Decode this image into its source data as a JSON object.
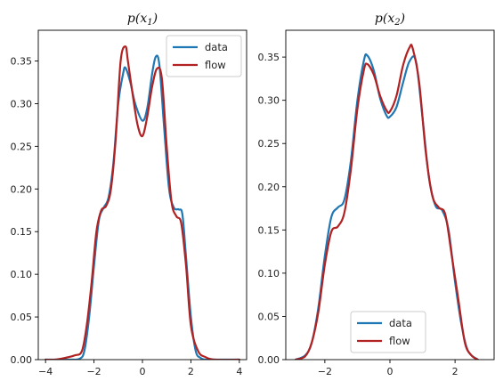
{
  "chart_data": [
    {
      "type": "line",
      "title": {
        "prefix": "p(x",
        "sub": "1",
        "suffix": ")"
      },
      "xlabel": "",
      "ylabel": "",
      "xlim": [
        -4.3,
        4.3
      ],
      "ylim": [
        0,
        0.386
      ],
      "xticks": [
        -4,
        -2,
        0,
        2,
        4
      ],
      "yticks": [
        0.0,
        0.05,
        0.1,
        0.15,
        0.2,
        0.25,
        0.3,
        0.35
      ],
      "legend": {
        "position": "upper right",
        "entries": [
          "data",
          "flow"
        ]
      },
      "series": [
        {
          "name": "data",
          "color": "#1f77b4",
          "x": [
            -4.0,
            -3.0,
            -2.6,
            -2.4,
            -2.2,
            -2.0,
            -1.8,
            -1.6,
            -1.4,
            -1.2,
            -1.0,
            -0.8,
            -0.7,
            -0.5,
            -0.3,
            0.0,
            0.2,
            0.4,
            0.55,
            0.7,
            0.9,
            1.1,
            1.3,
            1.5,
            1.65,
            1.8,
            2.0,
            2.2,
            2.4,
            2.6,
            3.0,
            4.0
          ],
          "y": [
            0.0,
            0.0,
            0.001,
            0.01,
            0.05,
            0.11,
            0.163,
            0.178,
            0.19,
            0.23,
            0.3,
            0.335,
            0.342,
            0.325,
            0.3,
            0.28,
            0.295,
            0.335,
            0.355,
            0.345,
            0.27,
            0.2,
            0.178,
            0.176,
            0.17,
            0.12,
            0.05,
            0.01,
            0.002,
            0.0,
            0.0,
            0.0
          ]
        },
        {
          "name": "flow",
          "color": "#b22222",
          "x": [
            -4.0,
            -3.6,
            -3.2,
            -2.8,
            -2.5,
            -2.3,
            -2.1,
            -1.9,
            -1.7,
            -1.5,
            -1.3,
            -1.1,
            -0.9,
            -0.7,
            -0.6,
            -0.4,
            -0.2,
            0.0,
            0.2,
            0.4,
            0.6,
            0.8,
            1.0,
            1.2,
            1.4,
            1.6,
            1.8,
            2.0,
            2.3,
            2.6,
            3.0,
            4.0
          ],
          "y": [
            0.0,
            0.0,
            0.002,
            0.005,
            0.01,
            0.04,
            0.09,
            0.15,
            0.175,
            0.18,
            0.2,
            0.26,
            0.35,
            0.367,
            0.35,
            0.31,
            0.275,
            0.262,
            0.285,
            0.32,
            0.341,
            0.33,
            0.25,
            0.185,
            0.168,
            0.16,
            0.11,
            0.04,
            0.01,
            0.003,
            0.0,
            0.0
          ]
        }
      ]
    },
    {
      "type": "line",
      "title": {
        "prefix": "p(x",
        "sub": "2",
        "suffix": ")"
      },
      "xlabel": "",
      "ylabel": "",
      "xlim": [
        -3.2,
        3.2
      ],
      "ylim": [
        0,
        0.381
      ],
      "xticks": [
        -2,
        0,
        2
      ],
      "yticks": [
        0.0,
        0.05,
        0.1,
        0.15,
        0.2,
        0.25,
        0.3,
        0.35
      ],
      "legend": {
        "position": "lower center",
        "entries": [
          "data",
          "flow"
        ]
      },
      "series": [
        {
          "name": "data",
          "color": "#1f77b4",
          "x": [
            -2.9,
            -2.6,
            -2.4,
            -2.2,
            -2.0,
            -1.8,
            -1.6,
            -1.4,
            -1.2,
            -1.0,
            -0.8,
            -0.7,
            -0.5,
            -0.3,
            -0.1,
            0.0,
            0.2,
            0.4,
            0.6,
            0.8,
            1.0,
            1.2,
            1.4,
            1.6,
            1.8,
            2.0,
            2.2,
            2.4,
            2.7
          ],
          "y": [
            0.0,
            0.005,
            0.02,
            0.06,
            0.12,
            0.165,
            0.176,
            0.185,
            0.23,
            0.3,
            0.346,
            0.352,
            0.335,
            0.302,
            0.282,
            0.281,
            0.292,
            0.32,
            0.345,
            0.345,
            0.28,
            0.21,
            0.178,
            0.173,
            0.15,
            0.09,
            0.04,
            0.01,
            0.0
          ]
        },
        {
          "name": "flow",
          "color": "#b22222",
          "x": [
            -2.9,
            -2.6,
            -2.4,
            -2.2,
            -2.0,
            -1.8,
            -1.6,
            -1.4,
            -1.2,
            -1.0,
            -0.8,
            -0.7,
            -0.5,
            -0.3,
            -0.1,
            0.0,
            0.2,
            0.4,
            0.6,
            0.7,
            0.9,
            1.1,
            1.3,
            1.5,
            1.7,
            1.9,
            2.1,
            2.3,
            2.5,
            2.7
          ],
          "y": [
            0.0,
            0.004,
            0.02,
            0.055,
            0.11,
            0.148,
            0.154,
            0.17,
            0.22,
            0.29,
            0.335,
            0.342,
            0.33,
            0.305,
            0.288,
            0.287,
            0.305,
            0.34,
            0.361,
            0.36,
            0.32,
            0.24,
            0.19,
            0.176,
            0.168,
            0.12,
            0.07,
            0.02,
            0.005,
            0.0
          ]
        }
      ]
    }
  ]
}
